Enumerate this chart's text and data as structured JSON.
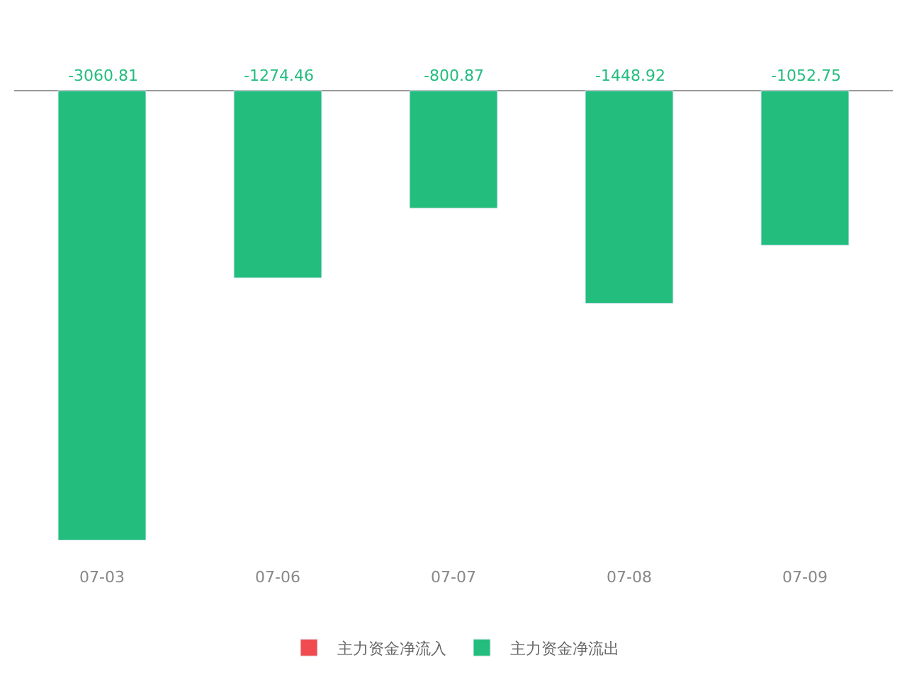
{
  "chart_data": {
    "type": "bar",
    "categories": [
      "07-03",
      "07-06",
      "07-07",
      "07-08",
      "07-09"
    ],
    "series": [
      {
        "name": "主力资金净流入",
        "color": "#f04b4f",
        "values": [
          null,
          null,
          null,
          null,
          null
        ]
      },
      {
        "name": "主力资金净流出",
        "color": "#23bd7d",
        "values": [
          -3060.81,
          -1274.46,
          -800.87,
          -1448.92,
          -1052.75
        ]
      }
    ],
    "data_labels": true,
    "legend": "bottom",
    "tick_labels": "x"
  }
}
